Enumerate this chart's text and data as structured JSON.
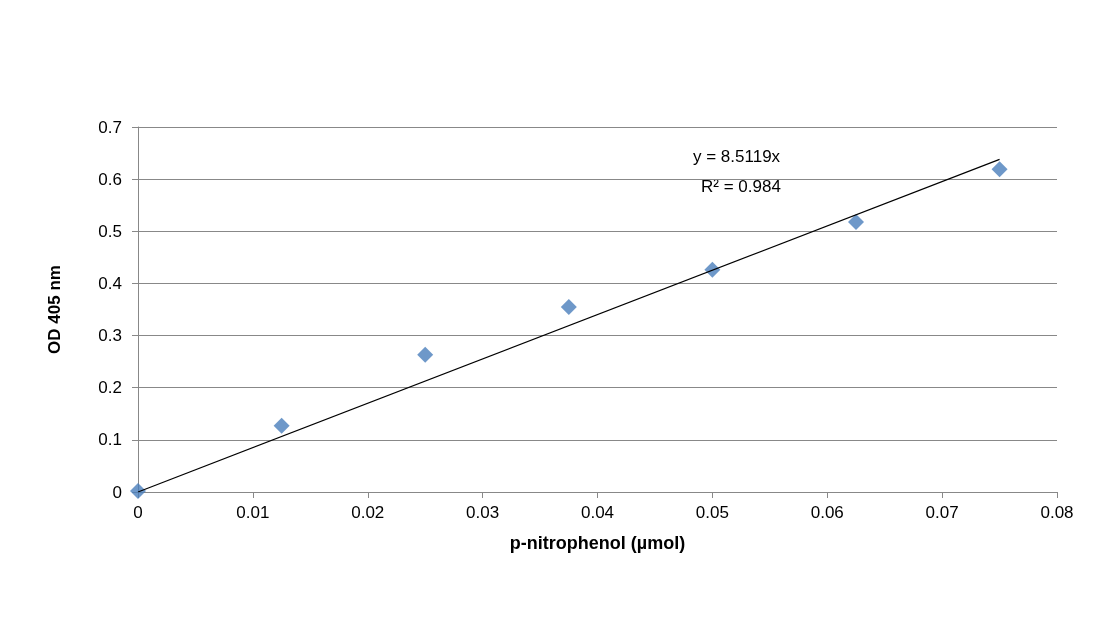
{
  "chart_data": {
    "type": "scatter",
    "xlabel": "p-nitrophenol (µmol)",
    "ylabel": "OD 405 nm",
    "x": [
      0,
      0.0125,
      0.025,
      0.0375,
      0.05,
      0.0625,
      0.075
    ],
    "series": [
      {
        "color": "#4a7ebb",
        "marker": "diamond",
        "values": [
          0.002,
          0.127,
          0.263,
          0.355,
          0.426,
          0.518,
          0.619
        ]
      },
      {
        "type": "line",
        "color": "#000000",
        "marker": "none",
        "x": [
          0,
          0.075
        ],
        "values": [
          0,
          0.638
        ]
      }
    ],
    "xlim": [
      0,
      0.08
    ],
    "xticks": [
      0,
      0.01,
      0.02,
      0.03,
      0.04,
      0.05,
      0.06,
      0.07,
      0.08
    ],
    "ylim": [
      0,
      0.7
    ],
    "yticks": [
      0,
      0.1,
      0.2,
      0.3,
      0.4,
      0.5,
      0.6,
      0.7
    ],
    "grid": "y",
    "annotations": [
      "y = 8.5119x",
      "R² = 0.984"
    ]
  }
}
